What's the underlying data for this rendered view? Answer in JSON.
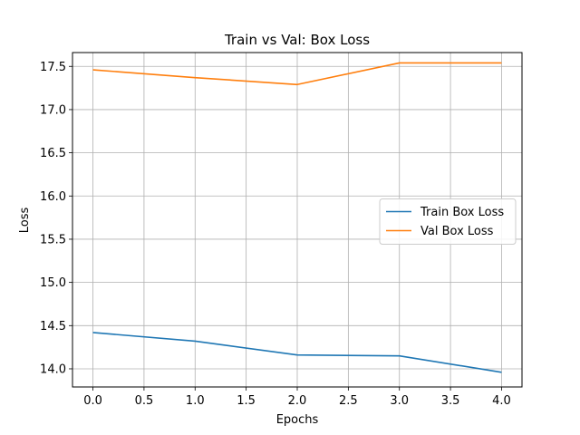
{
  "chart_data": {
    "type": "line",
    "title": "Train vs Val: Box Loss",
    "xlabel": "Epochs",
    "ylabel": "Loss",
    "xlim": [
      -0.2,
      4.2
    ],
    "ylim": [
      13.79,
      17.66
    ],
    "xticks": [
      0.0,
      0.5,
      1.0,
      1.5,
      2.0,
      2.5,
      3.0,
      3.5,
      4.0
    ],
    "xtick_labels": [
      "0.0",
      "0.5",
      "1.0",
      "1.5",
      "2.0",
      "2.5",
      "3.0",
      "3.5",
      "4.0"
    ],
    "yticks": [
      14.0,
      14.5,
      15.0,
      15.5,
      16.0,
      16.5,
      17.0,
      17.5
    ],
    "ytick_labels": [
      "14.0",
      "14.5",
      "15.0",
      "15.5",
      "16.0",
      "16.5",
      "17.0",
      "17.5"
    ],
    "grid": true,
    "legend_position": "center-right",
    "x": [
      0,
      1,
      2,
      3,
      4
    ],
    "series": [
      {
        "name": "Train Box Loss",
        "color": "#1f77b4",
        "values": [
          14.42,
          14.32,
          14.16,
          14.15,
          13.96
        ]
      },
      {
        "name": "Val Box Loss",
        "color": "#ff7f0e",
        "values": [
          17.46,
          17.37,
          17.29,
          17.54,
          17.54
        ]
      }
    ]
  }
}
